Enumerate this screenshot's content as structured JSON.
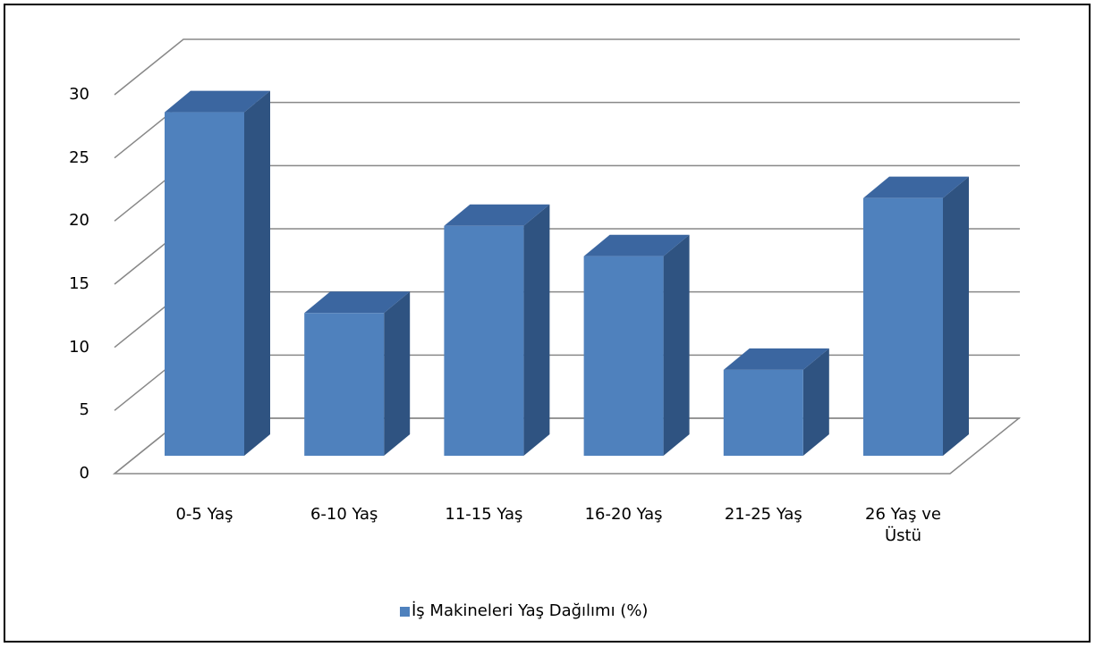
{
  "chart_data": {
    "type": "bar3d",
    "categories": [
      "0-5 Yaş",
      "6-10 Yaş",
      "11-15 Yaş",
      "16-20 Yaş",
      "21-25 Yaş",
      "26 Yaş ve Üstü"
    ],
    "series": [
      {
        "name": "İş Makineleri Yaş Dağılımı (%)",
        "color": "#4f81bd",
        "values": [
          27.2,
          11.3,
          18.2,
          15.8,
          6.8,
          20.4
        ]
      }
    ],
    "ylim": [
      0,
      30
    ],
    "yticks": [
      0,
      5,
      10,
      15,
      20,
      25,
      30
    ],
    "grid": true,
    "legend": "bottom"
  }
}
